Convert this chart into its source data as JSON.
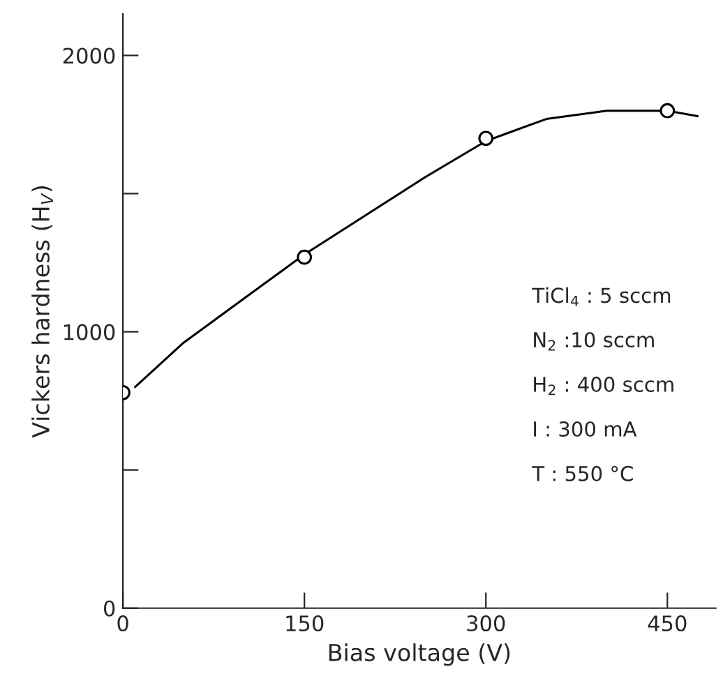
{
  "chart_data": {
    "type": "scatter",
    "xlabel": "Bias voltage (V)",
    "ylabel": "Vickers hardness (H$_{V}$)",
    "xlim": [
      0,
      490
    ],
    "ylim": [
      0,
      2150
    ],
    "xticks": [
      0,
      150,
      300,
      450
    ],
    "yticks": [
      0,
      {
        "value": 500,
        "label": null
      },
      1000,
      {
        "value": 1500,
        "label": null
      },
      2000
    ],
    "grid": false,
    "series": [
      {
        "type": "line",
        "color": "#000000",
        "marker": "none",
        "line_style": "solid",
        "x": [
          10,
          50,
          100,
          150,
          200,
          250,
          300,
          350,
          400,
          450,
          475
        ],
        "values": [
          800,
          960,
          1120,
          1280,
          1420,
          1560,
          1690,
          1770,
          1800,
          1800,
          1780
        ]
      },
      {
        "color": "#000000",
        "marker": "circle",
        "x": [
          0,
          150,
          300,
          450
        ],
        "values": [
          780,
          1270,
          1700,
          1800
        ]
      }
    ],
    "annotations": [
      "TiCl$_{4}$ : 5 sccm",
      "N$_{2}$ :10 sccm",
      "H$_{2}$ : 400 sccm",
      "I : 300 mA",
      "T : 550 °C"
    ]
  }
}
